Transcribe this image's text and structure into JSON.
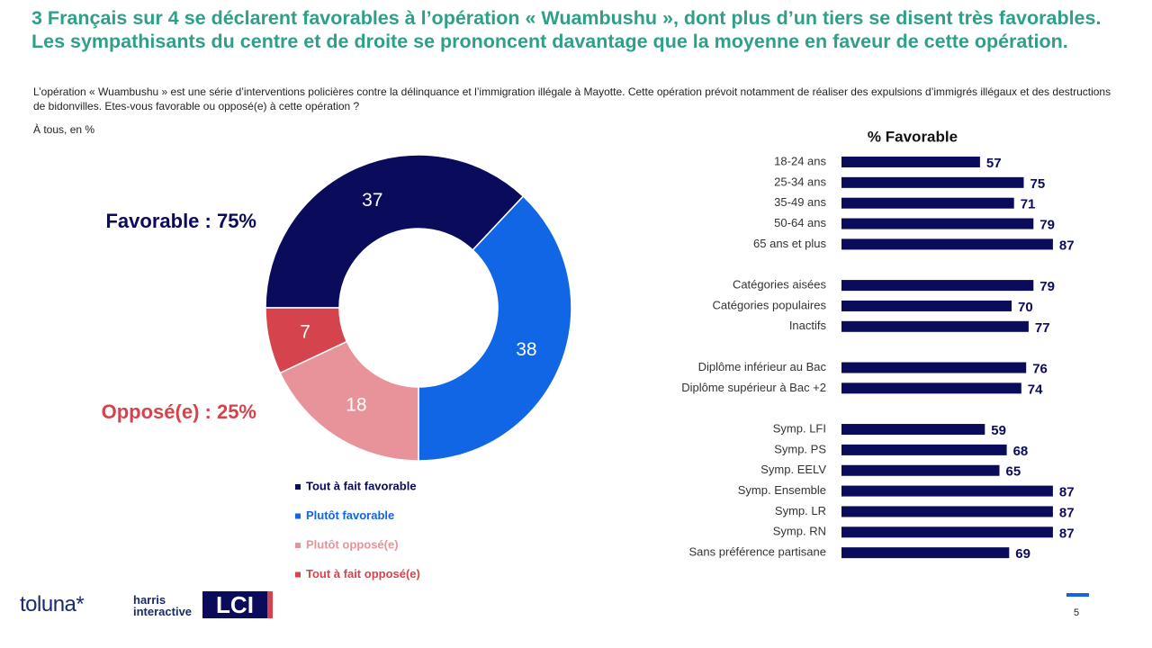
{
  "title": "3 Français sur 4 se déclarent favorables à l’opération « Wuambushu », dont plus d’un tiers se disent très favorables. Les sympathisants du centre et de droite se prononcent davantage que la moyenne en faveur de cette opération.",
  "question": "L’opération « Wuambushu » est une série d’interventions policières contre la délinquance et l’immigration illégale à Mayotte. Cette opération prévoit notamment de réaliser des expulsions d’immigrés illégaux et des destructions de bidonvilles. Etes-vous favorable ou opposé(e) à cette opération ?",
  "base": "À tous, en %",
  "chart_data": [
    {
      "type": "donut",
      "categories": [
        "Tout à fait favorable",
        "Plutôt favorable",
        "Plutôt opposé(e)",
        "Tout à fait opposé(e)"
      ],
      "values": [
        37,
        38,
        18,
        7
      ],
      "colors": [
        "#0b0b5c",
        "#1166e6",
        "#e8939a",
        "#d5444c"
      ],
      "annotations": [
        {
          "text": "Favorable : 75%",
          "color": "#0b0b5c"
        },
        {
          "text": "Opposé(e) : 25%",
          "color": "#d5444c"
        }
      ]
    },
    {
      "type": "bar",
      "title": "% Favorable",
      "color": "#0b0b5c",
      "categories": [
        "18-24 ans",
        "25-34 ans",
        "35-49 ans",
        "50-64 ans",
        "65 ans et plus",
        null,
        "Catégories aisées",
        "Catégories populaires",
        "Inactifs",
        null,
        "Diplôme inférieur au Bac",
        "Diplôme supérieur à Bac +2",
        null,
        "Symp. LFI",
        "Symp. PS",
        "Symp. EELV",
        "Symp. Ensemble",
        "Symp. LR",
        "Symp. RN",
        "Sans préférence partisane"
      ],
      "values": [
        57,
        75,
        71,
        79,
        87,
        null,
        79,
        70,
        77,
        null,
        76,
        74,
        null,
        59,
        68,
        65,
        87,
        87,
        87,
        69
      ]
    }
  ],
  "footer": {
    "logos": [
      "toluna*",
      "harris interactive",
      "LCI"
    ],
    "page": "5"
  }
}
